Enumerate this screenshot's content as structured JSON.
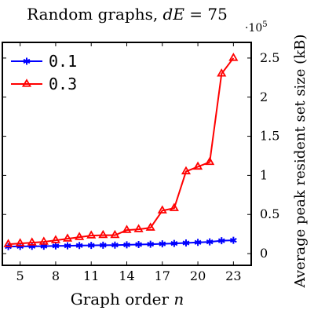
{
  "chart_data": {
    "type": "line",
    "title_prefix": "Random graphs, ",
    "title_var": "dE",
    "title_suffix": " = 75",
    "xlabel_prefix": "Graph order ",
    "xlabel_var": "n",
    "ylabel": "Average peak resident set size (kB)",
    "y_exponent_label": "·10",
    "y_exponent_power": "5",
    "xlim": [
      3.5,
      24.5
    ],
    "ylim": [
      -15000,
      270000
    ],
    "xticks": [
      5,
      8,
      11,
      14,
      17,
      20,
      23
    ],
    "yticks": [
      0,
      50000,
      100000,
      150000,
      200000,
      250000
    ],
    "ytick_labels": [
      "0",
      "0.5",
      "1",
      "1.5",
      "2",
      "2.5"
    ],
    "legend_position": "top-left",
    "x": [
      4,
      5,
      6,
      7,
      8,
      9,
      10,
      11,
      12,
      13,
      14,
      15,
      16,
      17,
      18,
      19,
      20,
      21,
      22,
      23
    ],
    "series": [
      {
        "name": "0.1",
        "color": "#0000ff",
        "marker": "star",
        "values": [
          9000,
          9200,
          9300,
          9500,
          9800,
          10000,
          10300,
          10500,
          10700,
          10900,
          11200,
          11600,
          12000,
          12500,
          13000,
          13600,
          14300,
          15000,
          16500,
          17000
        ]
      },
      {
        "name": "0.3",
        "color": "#ff0000",
        "marker": "triangle",
        "values": [
          12000,
          13000,
          14000,
          15000,
          17000,
          19000,
          21000,
          23000,
          23500,
          23500,
          30000,
          31000,
          33000,
          55000,
          58000,
          105000,
          111000,
          117000,
          230000,
          250000
        ]
      }
    ]
  }
}
